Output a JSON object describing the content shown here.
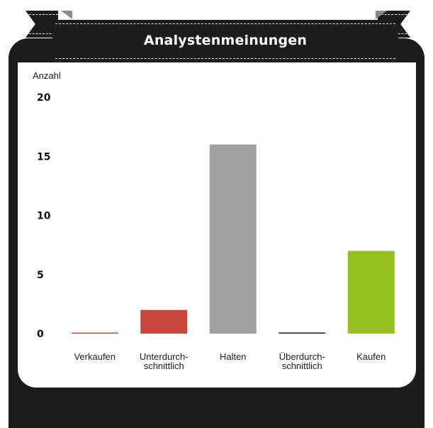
{
  "chart_data": {
    "type": "bar",
    "title": "Analystenmeinungen",
    "ylabel": "Anzahl",
    "ylim": [
      0,
      20
    ],
    "yticks": [
      "0",
      "5",
      "10",
      "15",
      "20"
    ],
    "categories": [
      [
        "Verkaufen"
      ],
      [
        "Unterdurch-",
        "schnittlich"
      ],
      [
        "Halten"
      ],
      [
        "Überdurch-",
        "schnittlich"
      ],
      [
        "Kaufen"
      ]
    ],
    "values": [
      0,
      2,
      16,
      0,
      7
    ],
    "colors": [
      "#c8473a",
      "#c8473a",
      "#a0a0a0",
      "#1c1c1c",
      "#97c11f"
    ],
    "grid": false,
    "legend": "none"
  }
}
